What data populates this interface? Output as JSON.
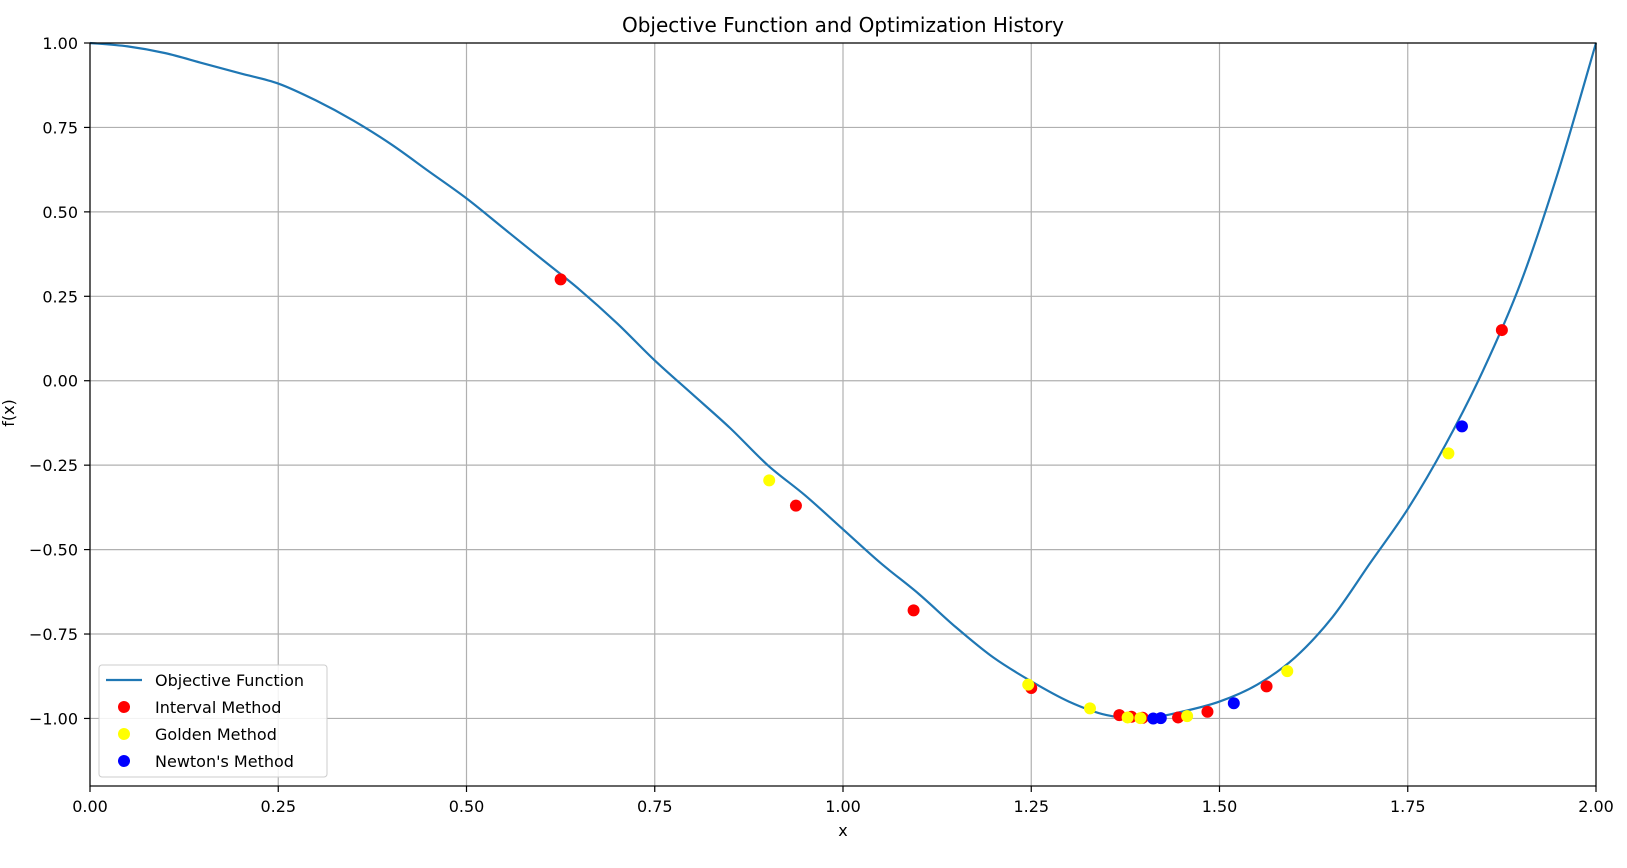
{
  "chart_data": {
    "type": "line",
    "title": "Objective Function and Optimization History",
    "xlabel": "x",
    "ylabel": "f(x)",
    "xlim": [
      0,
      2
    ],
    "ylim": [
      -1.2,
      1.0
    ],
    "grid": true,
    "legend_position": "lower-left",
    "x_ticks": [
      0,
      0.25,
      0.5,
      0.75,
      1.0,
      1.25,
      1.5,
      1.75,
      2.0
    ],
    "x_tick_labels": [
      "0.00",
      "0.25",
      "0.50",
      "0.75",
      "1.00",
      "1.25",
      "1.50",
      "1.75",
      "2.00"
    ],
    "y_ticks": [
      1.0,
      0.75,
      0.5,
      0.25,
      0.0,
      -0.25,
      -0.5,
      -0.75,
      -1.0
    ],
    "y_tick_labels": [
      "1.00",
      "0.75",
      "0.50",
      "0.25",
      "0.00",
      "−0.25",
      "−0.50",
      "−0.75",
      "−1.00"
    ],
    "series": [
      {
        "name": "Objective Function",
        "kind": "line",
        "color": "#1f77b4",
        "x": [
          0.0,
          0.05,
          0.1,
          0.15,
          0.2,
          0.25,
          0.3,
          0.35,
          0.4,
          0.45,
          0.5,
          0.55,
          0.6,
          0.65,
          0.7,
          0.75,
          0.8,
          0.85,
          0.9,
          0.95,
          1.0,
          1.05,
          1.1,
          1.15,
          1.2,
          1.25,
          1.3,
          1.35,
          1.4,
          1.45,
          1.5,
          1.55,
          1.6,
          1.65,
          1.7,
          1.75,
          1.8,
          1.85,
          1.9,
          1.95,
          2.0
        ],
        "y": [
          1.0,
          0.99,
          0.97,
          0.94,
          0.91,
          0.88,
          0.83,
          0.77,
          0.7,
          0.62,
          0.54,
          0.45,
          0.36,
          0.27,
          0.17,
          0.06,
          -0.04,
          -0.14,
          -0.25,
          -0.34,
          -0.44,
          -0.54,
          -0.63,
          -0.73,
          -0.82,
          -0.89,
          -0.95,
          -0.99,
          -1.0,
          -0.98,
          -0.95,
          -0.9,
          -0.82,
          -0.7,
          -0.54,
          -0.38,
          -0.19,
          0.03,
          0.29,
          0.62,
          1.0
        ]
      },
      {
        "name": "Interval Method",
        "kind": "scatter",
        "color": "#ff0000",
        "x": [
          0.625,
          0.9375,
          1.09375,
          1.25,
          1.367,
          1.383,
          1.398,
          1.445,
          1.484,
          1.5625,
          1.875
        ],
        "y": [
          0.3,
          -0.37,
          -0.68,
          -0.91,
          -0.99,
          -0.995,
          -0.998,
          -0.997,
          -0.98,
          -0.905,
          0.15
        ]
      },
      {
        "name": "Golden Method",
        "kind": "scatter",
        "color": "#ffff00",
        "x": [
          0.902,
          1.246,
          1.328,
          1.378,
          1.395,
          1.457,
          1.59,
          1.804
        ],
        "y": [
          -0.295,
          -0.9,
          -0.97,
          -0.997,
          -0.999,
          -0.993,
          -0.86,
          -0.215
        ]
      },
      {
        "name": "Newton's Method",
        "kind": "scatter",
        "color": "#0000ff",
        "x": [
          1.412,
          1.422,
          1.519,
          1.822
        ],
        "y": [
          -1.0,
          -0.999,
          -0.955,
          -0.135
        ]
      }
    ]
  }
}
